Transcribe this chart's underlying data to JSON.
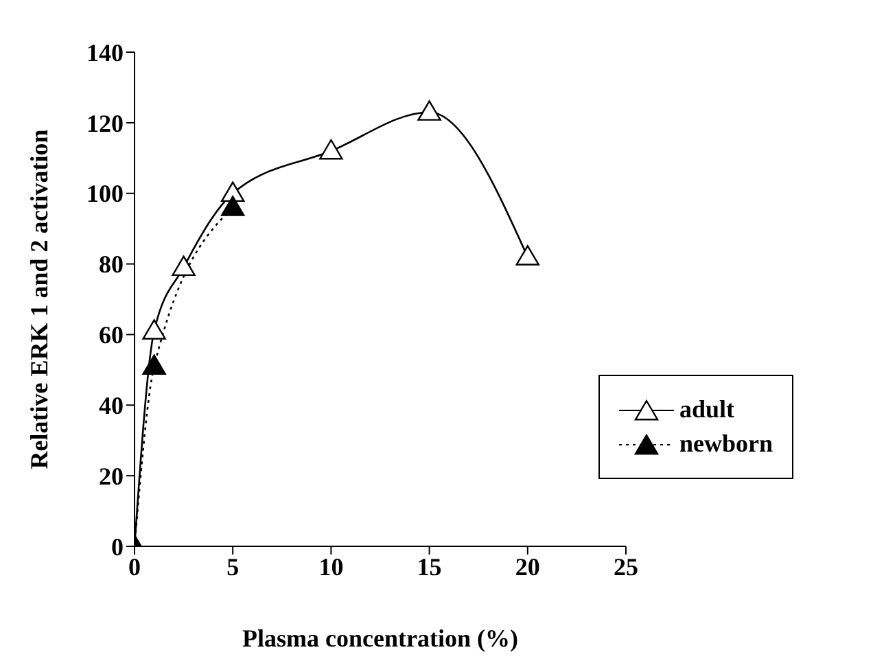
{
  "chart_data": {
    "type": "line",
    "xlabel": "Plasma concentration (%)",
    "ylabel": "Relative ERK 1 and 2 activation",
    "series": [
      {
        "name": "adult",
        "color": "#000000",
        "x": [
          0,
          1,
          2.5,
          5,
          10,
          15,
          20
        ],
        "values": [
          0,
          61,
          79,
          100,
          112,
          123,
          82
        ],
        "line_style": "solid"
      },
      {
        "name": "newborn",
        "color": "#000000",
        "x": [
          0,
          1,
          5
        ],
        "values": [
          0,
          51,
          96
        ],
        "line_style": "dotted"
      }
    ],
    "xlim": [
      0,
      25
    ],
    "xticks": [
      0,
      5,
      10,
      15,
      20,
      25
    ],
    "ylim": [
      0,
      140
    ],
    "yticks": [
      0,
      20,
      40,
      60,
      80,
      100,
      120,
      140
    ],
    "grid": false,
    "legend": "right",
    "marker": "triangle"
  }
}
